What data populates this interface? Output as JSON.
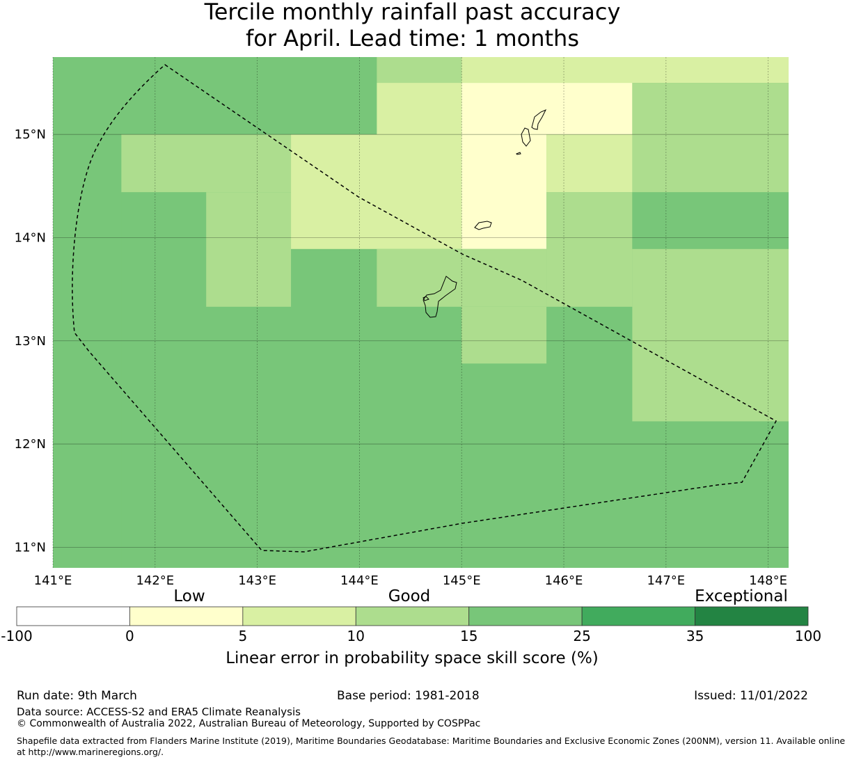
{
  "title_line1": "Tercile monthly rainfall past accuracy",
  "title_line2": "for April. Lead time: 1 months",
  "map": {
    "lon_range": [
      141.0,
      148.2
    ],
    "lat_range": [
      10.8,
      15.75
    ],
    "lon_tick_labels": [
      "141°E",
      "142°E",
      "143°E",
      "144°E",
      "145°E",
      "146°E",
      "147°E",
      "148°E"
    ],
    "lat_tick_labels": [
      "11°N",
      "12°N",
      "13°N",
      "14°N",
      "15°N"
    ],
    "gridlines": true,
    "grid_cells_skill_category": [
      {
        "lon": [
          141.0,
          144.17
        ],
        "lat": [
          15.0,
          15.75
        ],
        "category": "15-25"
      },
      {
        "lon": [
          144.17,
          145.0
        ],
        "lat": [
          15.5,
          15.75
        ],
        "category": "10-15"
      },
      {
        "lon": [
          145.0,
          148.2
        ],
        "lat": [
          15.5,
          15.75
        ],
        "category": "5-10"
      },
      {
        "lon": [
          144.17,
          145.0
        ],
        "lat": [
          15.0,
          15.5
        ],
        "category": "5-10"
      },
      {
        "lon": [
          145.0,
          146.67
        ],
        "lat": [
          15.0,
          15.5
        ],
        "category": "0-5"
      },
      {
        "lon": [
          146.67,
          148.2
        ],
        "lat": [
          14.44,
          15.5
        ],
        "category": "10-15"
      },
      {
        "lon": [
          141.0,
          141.67
        ],
        "lat": [
          10.8,
          15.0
        ],
        "category": "15-25"
      },
      {
        "lon": [
          141.67,
          143.33
        ],
        "lat": [
          14.44,
          15.0
        ],
        "category": "10-15"
      },
      {
        "lon": [
          141.67,
          142.5
        ],
        "lat": [
          10.8,
          14.44
        ],
        "category": "15-25"
      },
      {
        "lon": [
          142.5,
          143.33
        ],
        "lat": [
          13.33,
          14.44
        ],
        "category": "10-15"
      },
      {
        "lon": [
          143.33,
          145.0
        ],
        "lat": [
          13.89,
          15.0
        ],
        "category": "5-10"
      },
      {
        "lon": [
          145.0,
          145.83
        ],
        "lat": [
          13.89,
          15.0
        ],
        "category": "0-5"
      },
      {
        "lon": [
          145.83,
          146.67
        ],
        "lat": [
          14.44,
          15.0
        ],
        "category": "5-10"
      },
      {
        "lon": [
          145.83,
          146.67
        ],
        "lat": [
          13.33,
          14.44
        ],
        "category": "10-15"
      },
      {
        "lon": [
          146.67,
          148.2
        ],
        "lat": [
          13.89,
          14.44
        ],
        "category": "15-25"
      },
      {
        "lon": [
          144.17,
          145.83
        ],
        "lat": [
          13.33,
          13.89
        ],
        "category": "10-15"
      },
      {
        "lon": [
          145.0,
          145.83
        ],
        "lat": [
          12.78,
          13.33
        ],
        "category": "10-15"
      },
      {
        "lon": [
          146.67,
          148.2
        ],
        "lat": [
          12.22,
          13.89
        ],
        "category": "10-15"
      }
    ],
    "background_category": "15-25"
  },
  "colorbar": {
    "word_labels": [
      "Low",
      "Good",
      "Exceptional"
    ],
    "boundaries": [
      "-100",
      "0",
      "5",
      "10",
      "15",
      "25",
      "35",
      "100"
    ],
    "bin_colors": [
      "#ffffff",
      "#ffffcc",
      "#d9f0a3",
      "#addd8e",
      "#78c679",
      "#41ab5d",
      "#238443"
    ],
    "category_keys": [
      "-100-0",
      "0-5",
      "5-10",
      "10-15",
      "15-25",
      "25-35",
      "35-100"
    ],
    "label": "Linear error in probability space skill score (%)"
  },
  "footer": {
    "run_date": "Run date: 9th March",
    "base_period": "Base period: 1981-2018",
    "issued": "Issued: 11/01/2022",
    "data_source": "Data source: ACCESS-S2 and ERA5 Climate Reanalysis",
    "copyright": "© Commonwealth of Australia 2022, Australian Bureau of Meteorology, Supported by COSPPac",
    "shapefile_line1": "Shapefile data extracted from Flanders Marine Institute (2019), Maritime Boundaries Geodatabase: Maritime Boundaries and Exclusive Economic Zones (200NM), version 11. Available online",
    "shapefile_line2": "at http://www.marineregions.org/."
  }
}
